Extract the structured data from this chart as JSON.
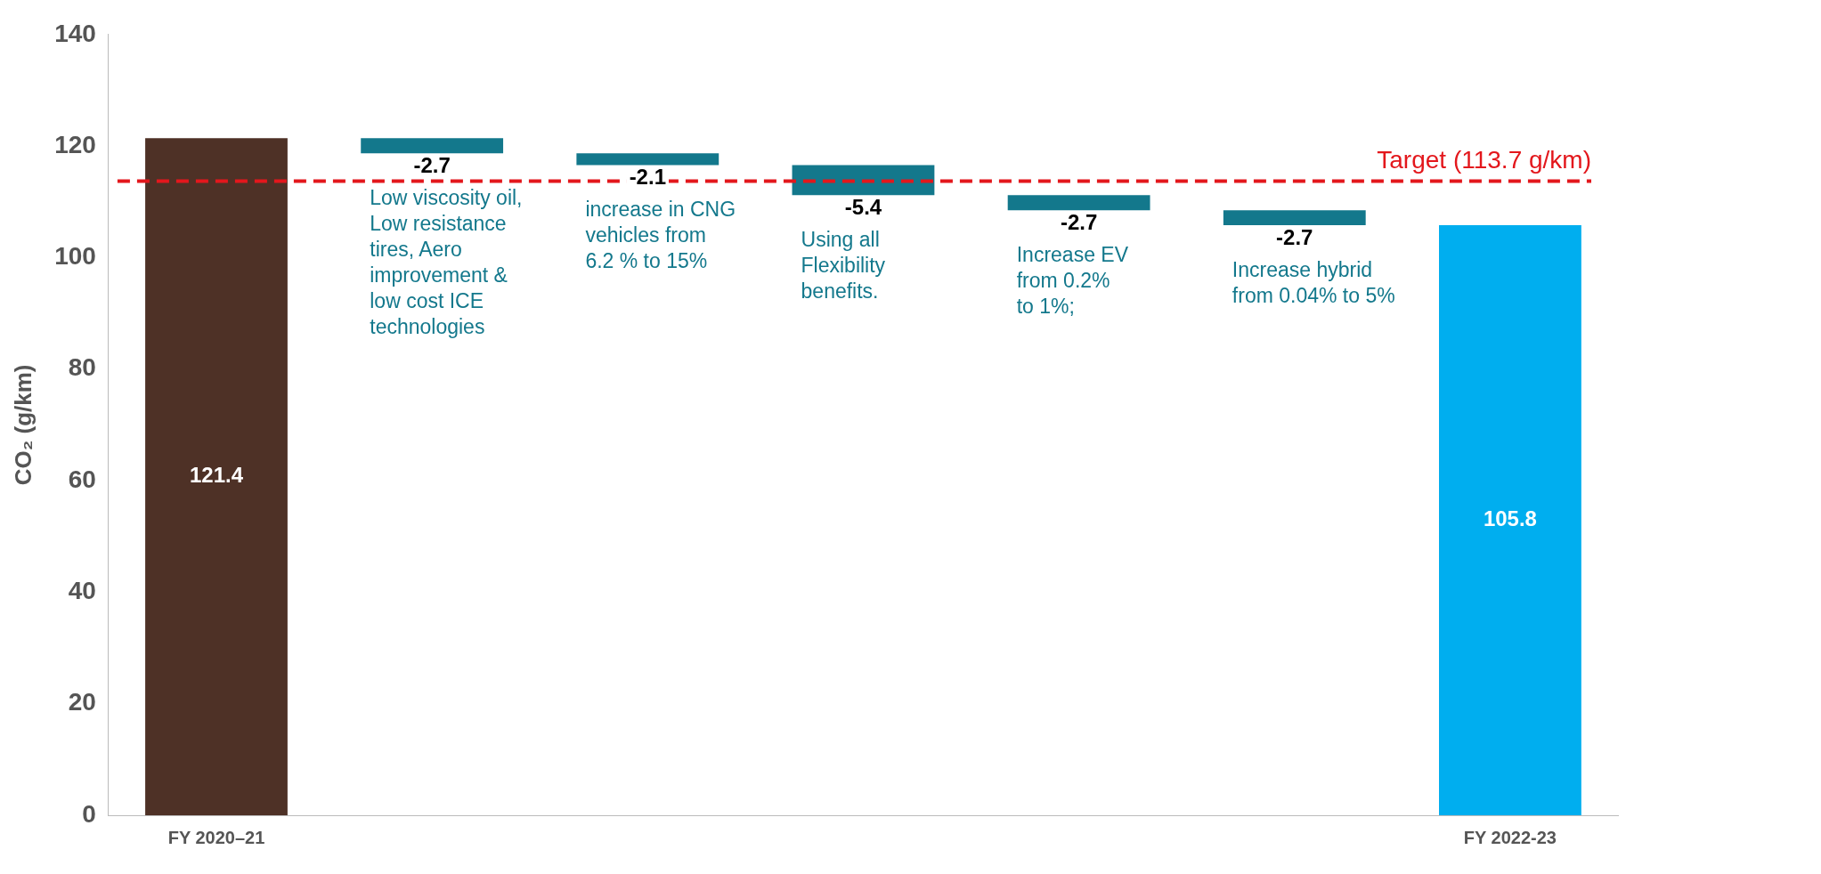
{
  "chart_data": {
    "type": "bar",
    "categories": [
      "FY 2020–21",
      null,
      null,
      null,
      null,
      null,
      "FY 2022-23"
    ],
    "values": [
      121.4,
      -2.7,
      -2.1,
      -5.4,
      -2.7,
      -2.7,
      105.8
    ],
    "base": [
      null,
      121.4,
      118.7,
      116.6,
      111.2,
      108.5,
      null
    ],
    "colors": [
      "#4e3126",
      "#13788c",
      "#13788c",
      "#13788c",
      "#13788c",
      "#13788c",
      "#00aeef"
    ],
    "ylabel": "CO₂ (g/km)",
    "ylim": [
      0,
      140
    ],
    "yticks": [
      0,
      20,
      40,
      60,
      80,
      100,
      120,
      140
    ],
    "grid": false,
    "legend": false,
    "data_labels": true,
    "ref_lines": [
      {
        "axis": "y",
        "value": 113.7,
        "label": "Target (113.7 g/km)",
        "color": "#e3171c",
        "line_style": "dashed"
      }
    ],
    "annotations": [
      "Low viscosity oil,\nLow resistance\ntires, Aero\nimprovement &\nlow cost ICE\ntechnologies",
      "increase in CNG\nvehicles from\n6.2 % to 15%",
      "Using all\nFlexibility\nbenefits.",
      "Increase EV\nfrom 0.2%\nto 1%;",
      "Increase hybrid\nfrom 0.04% to 5%"
    ]
  }
}
